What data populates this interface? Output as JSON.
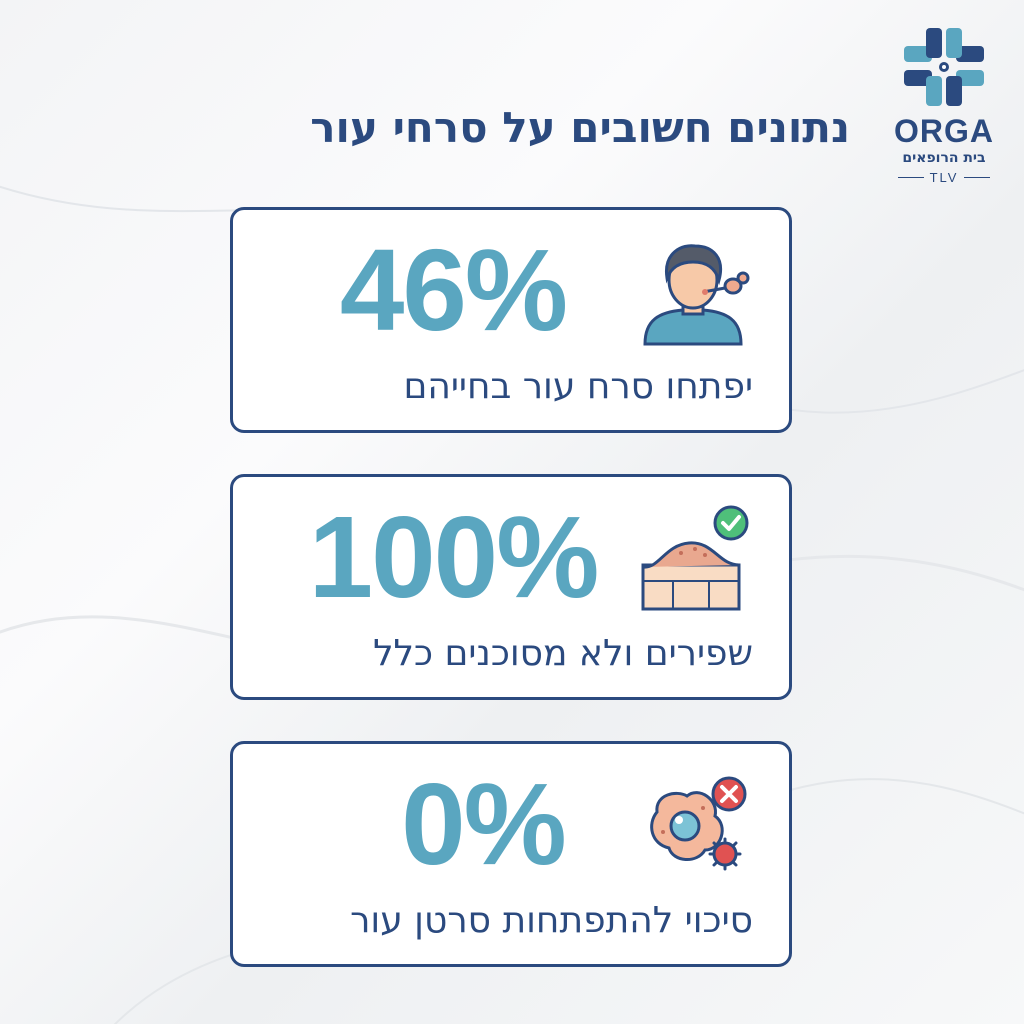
{
  "brand": {
    "name": "ORGA",
    "subtitle": "בית הרופאים",
    "city": "TLV",
    "colors": {
      "navy": "#2b4a7f",
      "teal": "#5aa6c0",
      "light_teal": "#8cc8d8"
    }
  },
  "title": "נתונים חשובים על סרחי עור",
  "cards": [
    {
      "stat": "46%",
      "caption": "יפתחו סרח עור בחייהם",
      "icon": "person-skin-icon"
    },
    {
      "stat": "100%",
      "caption": "שפירים ולא מסוכנים כלל",
      "icon": "skin-layer-check-icon"
    },
    {
      "stat": "0%",
      "caption": "סיכוי להתפתחות סרטן עור",
      "icon": "cell-virus-cross-icon"
    }
  ]
}
